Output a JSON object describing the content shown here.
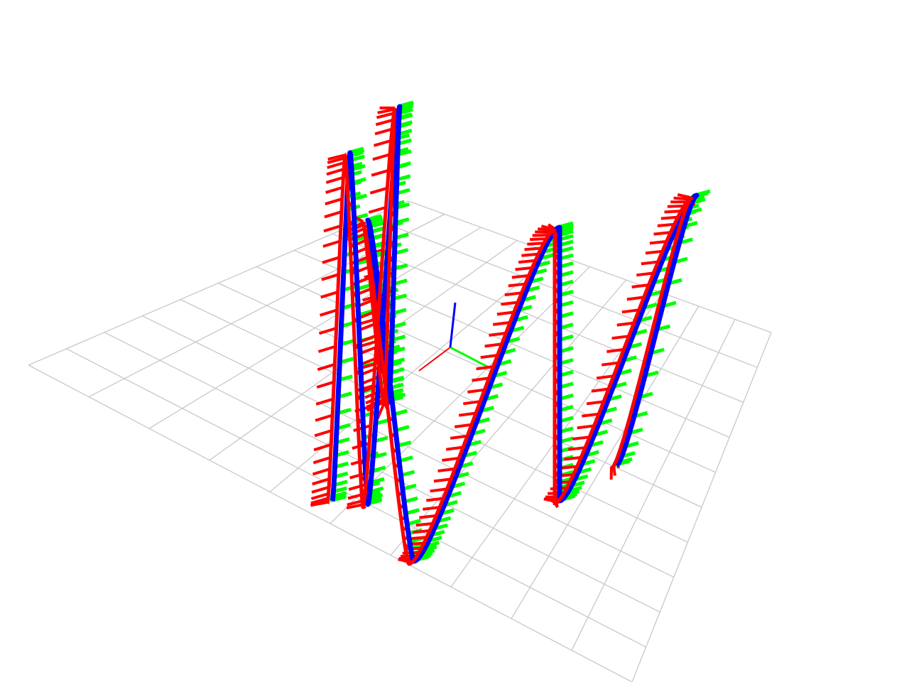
{
  "viewer": {
    "background_color": "#ffffff",
    "grid": {
      "visible": true,
      "divisions": 10,
      "line_color": "#c8c8c8"
    },
    "origin_axes": {
      "visible": true,
      "x_color": "#ff0000",
      "y_color": "#00ff00",
      "z_color": "#0000ff"
    },
    "trajectory": {
      "curve_color": "#0000ff",
      "frame_x_color": "#ff0000",
      "frame_y_color": "#00ff00",
      "frame_z_color": "#0000ff",
      "frame_count": 300
    }
  }
}
